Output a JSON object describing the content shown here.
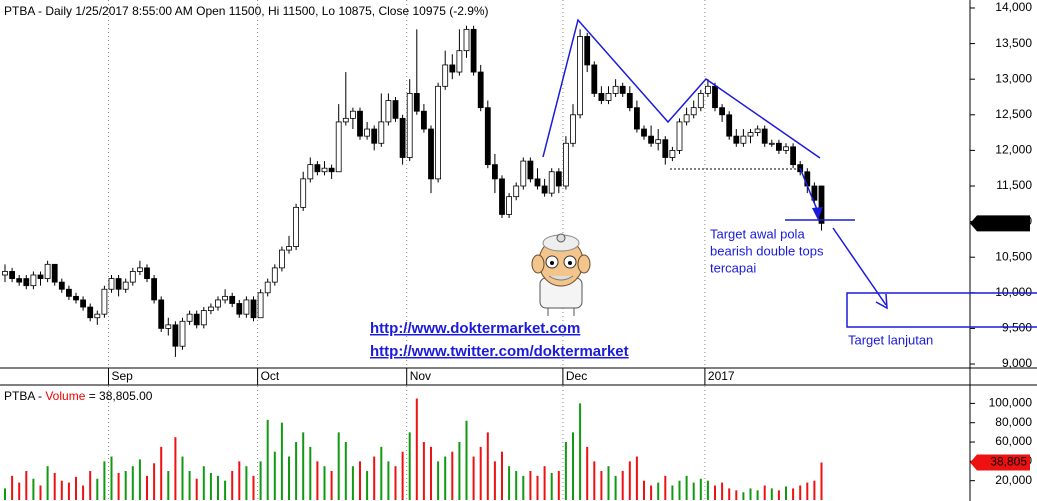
{
  "chart_data": {
    "type": "candlestick",
    "title": "PTBA - Daily 1/25/2017 8:55:00 AM Open 11500, Hi 11500, Lo 10875, Close 10975 (-2.9%)",
    "categories": [
      null,
      null,
      null,
      null,
      null,
      null,
      null,
      null,
      null,
      null,
      null,
      null,
      null,
      null,
      null,
      "Sep",
      null,
      null,
      null,
      null,
      null,
      null,
      null,
      null,
      null,
      null,
      null,
      null,
      null,
      null,
      null,
      null,
      null,
      null,
      null,
      null,
      "Oct",
      null,
      null,
      null,
      null,
      null,
      null,
      null,
      null,
      null,
      null,
      null,
      null,
      null,
      null,
      null,
      null,
      null,
      null,
      null,
      null,
      "Nov",
      null,
      null,
      null,
      null,
      null,
      null,
      null,
      null,
      null,
      null,
      null,
      null,
      null,
      null,
      null,
      null,
      null,
      null,
      null,
      null,
      null,
      "Dec",
      null,
      null,
      null,
      null,
      null,
      null,
      null,
      null,
      null,
      null,
      null,
      null,
      null,
      null,
      null,
      null,
      null,
      null,
      null,
      "2017",
      null,
      null,
      null,
      null,
      null,
      null,
      null,
      null,
      null,
      null,
      null,
      null,
      null,
      null,
      null,
      null
    ],
    "ohlc": [
      [
        10250,
        10400,
        10150,
        10300
      ],
      [
        10300,
        10350,
        10150,
        10200
      ],
      [
        10200,
        10250,
        10100,
        10150
      ],
      [
        10200,
        10250,
        10050,
        10100
      ],
      [
        10100,
        10300,
        10050,
        10250
      ],
      [
        10250,
        10300,
        10100,
        10200
      ],
      [
        10200,
        10450,
        10150,
        10400
      ],
      [
        10400,
        10400,
        10100,
        10150
      ],
      [
        10150,
        10200,
        10000,
        10050
      ],
      [
        10050,
        10100,
        9900,
        9950
      ],
      [
        9950,
        10000,
        9850,
        9900
      ],
      [
        9900,
        9950,
        9750,
        9800
      ],
      [
        9800,
        9850,
        9600,
        9650
      ],
      [
        9650,
        9750,
        9550,
        9700
      ],
      [
        9700,
        10100,
        9650,
        10050
      ],
      [
        10050,
        10250,
        10000,
        10200
      ],
      [
        10200,
        10250,
        9950,
        10050
      ],
      [
        10050,
        10200,
        10000,
        10150
      ],
      [
        10150,
        10350,
        10100,
        10300
      ],
      [
        10300,
        10450,
        10250,
        10350
      ],
      [
        10350,
        10400,
        10150,
        10200
      ],
      [
        10200,
        10250,
        9850,
        9900
      ],
      [
        9900,
        9950,
        9450,
        9500
      ],
      [
        9500,
        9650,
        9400,
        9550
      ],
      [
        9550,
        9600,
        9100,
        9250
      ],
      [
        9250,
        9650,
        9200,
        9600
      ],
      [
        9600,
        9750,
        9550,
        9700
      ],
      [
        9700,
        9750,
        9500,
        9550
      ],
      [
        9550,
        9800,
        9500,
        9750
      ],
      [
        9750,
        9850,
        9700,
        9800
      ],
      [
        9800,
        9950,
        9750,
        9900
      ],
      [
        9900,
        10050,
        9850,
        9950
      ],
      [
        9950,
        10000,
        9800,
        9850
      ],
      [
        9850,
        9900,
        9650,
        9700
      ],
      [
        9700,
        9950,
        9650,
        9900
      ],
      [
        9900,
        9950,
        9600,
        9650
      ],
      [
        9650,
        10050,
        9650,
        10000
      ],
      [
        10000,
        10200,
        9950,
        10150
      ],
      [
        10150,
        10400,
        10100,
        10350
      ],
      [
        10350,
        10650,
        10300,
        10600
      ],
      [
        10600,
        10800,
        10550,
        10650
      ],
      [
        10650,
        11250,
        10600,
        11200
      ],
      [
        11200,
        11700,
        11150,
        11600
      ],
      [
        11600,
        11900,
        11550,
        11800
      ],
      [
        11800,
        11850,
        11650,
        11700
      ],
      [
        11700,
        11850,
        11650,
        11750
      ],
      [
        11750,
        11800,
        11600,
        11700
      ],
      [
        11700,
        12650,
        11700,
        12400
      ],
      [
        12400,
        13100,
        12350,
        12450
      ],
      [
        12450,
        12600,
        12300,
        12550
      ],
      [
        12550,
        12600,
        12150,
        12200
      ],
      [
        12200,
        12400,
        12150,
        12300
      ],
      [
        12300,
        12350,
        12000,
        12100
      ],
      [
        12100,
        12800,
        12050,
        12400
      ],
      [
        12400,
        12800,
        12350,
        12700
      ],
      [
        12700,
        12750,
        12400,
        12450
      ],
      [
        12450,
        12500,
        11800,
        11900
      ],
      [
        11900,
        13000,
        11850,
        12800
      ],
      [
        12800,
        13700,
        12500,
        12550
      ],
      [
        12550,
        12650,
        12250,
        12300
      ],
      [
        12300,
        12350,
        11400,
        11600
      ],
      [
        11600,
        12950,
        11550,
        12900
      ],
      [
        12900,
        13400,
        12850,
        13200
      ],
      [
        13200,
        13350,
        13000,
        13100
      ],
      [
        13100,
        13700,
        13050,
        13400
      ],
      [
        13400,
        13750,
        13300,
        13700
      ],
      [
        13700,
        13750,
        13050,
        13100
      ],
      [
        13100,
        13200,
        12550,
        12600
      ],
      [
        12600,
        12700,
        11750,
        11800
      ],
      [
        11800,
        11950,
        11400,
        11600
      ],
      [
        11600,
        11650,
        11050,
        11100
      ],
      [
        11100,
        11400,
        11050,
        11350
      ],
      [
        11350,
        11550,
        11300,
        11500
      ],
      [
        11500,
        11900,
        11450,
        11850
      ],
      [
        11850,
        11900,
        11550,
        11600
      ],
      [
        11600,
        11750,
        11450,
        11500
      ],
      [
        11500,
        11600,
        11350,
        11400
      ],
      [
        11400,
        11750,
        11350,
        11700
      ],
      [
        11700,
        11750,
        11400,
        11500
      ],
      [
        11500,
        12200,
        11450,
        12100
      ],
      [
        12100,
        12650,
        12050,
        12500
      ],
      [
        12500,
        13700,
        12450,
        13600
      ],
      [
        13600,
        13650,
        13100,
        13200
      ],
      [
        13200,
        13250,
        12750,
        12800
      ],
      [
        12800,
        12900,
        12650,
        12700
      ],
      [
        12700,
        12900,
        12650,
        12800
      ],
      [
        12800,
        13000,
        12750,
        12900
      ],
      [
        12900,
        12950,
        12750,
        12800
      ],
      [
        12800,
        12900,
        12550,
        12600
      ],
      [
        12600,
        12700,
        12250,
        12300
      ],
      [
        12300,
        12350,
        12150,
        12200
      ],
      [
        12200,
        12350,
        12050,
        12100
      ],
      [
        12100,
        12300,
        12000,
        12150
      ],
      [
        12150,
        12200,
        11800,
        11900
      ],
      [
        11900,
        12050,
        11850,
        12000
      ],
      [
        12000,
        12450,
        11950,
        12400
      ],
      [
        12400,
        12600,
        12350,
        12500
      ],
      [
        12500,
        12700,
        12450,
        12600
      ],
      [
        12600,
        12850,
        12550,
        12800
      ],
      [
        12800,
        13000,
        12750,
        12900
      ],
      [
        12900,
        12950,
        12550,
        12600
      ],
      [
        12600,
        12650,
        12400,
        12500
      ],
      [
        12500,
        12550,
        12150,
        12200
      ],
      [
        12200,
        12300,
        12050,
        12100
      ],
      [
        12100,
        12300,
        12050,
        12200
      ],
      [
        12200,
        12300,
        12100,
        12250
      ],
      [
        12250,
        12350,
        12200,
        12300
      ],
      [
        12300,
        12350,
        12050,
        12100
      ],
      [
        12100,
        12150,
        12050,
        12100
      ],
      [
        12100,
        12150,
        11950,
        12000
      ],
      [
        12000,
        12100,
        11950,
        12050
      ],
      [
        12050,
        12100,
        11750,
        11800
      ],
      [
        11800,
        11850,
        11650,
        11700
      ],
      [
        11700,
        11750,
        11400,
        11500
      ],
      [
        11500,
        11550,
        11250,
        11300
      ],
      [
        11500,
        11500,
        10875,
        10975
      ]
    ],
    "up_color": "#ffffff",
    "down_color": "#000000",
    "ylim": [
      8944,
      14112
    ],
    "yticks": [
      {
        "value": 9000,
        "label": "9,000"
      },
      {
        "value": 9500,
        "label": "9,500"
      },
      {
        "value": 10000,
        "label": "10,000"
      },
      {
        "value": 10500,
        "label": "10,500"
      },
      {
        "value": 11000,
        "label": "11,000"
      },
      {
        "value": 11500,
        "label": "11,500"
      },
      {
        "value": 12000,
        "label": "12,000"
      },
      {
        "value": 12500,
        "label": "12,500"
      },
      {
        "value": 13000,
        "label": "13,000"
      },
      {
        "value": 13500,
        "label": "13,500"
      },
      {
        "value": 14000,
        "label": "14,000"
      }
    ],
    "price_marker": {
      "value": 10975,
      "label": "10,975"
    },
    "volume_title": {
      "prefix": "PTBA - ",
      "name": "Volume",
      "suffix": "= 38,805.00"
    },
    "volume": [
      12000,
      25000,
      18000,
      30000,
      22000,
      15000,
      35000,
      28000,
      20000,
      18000,
      24000,
      15000,
      30000,
      22000,
      40000,
      45000,
      28000,
      30000,
      35000,
      42000,
      25000,
      38000,
      55000,
      30000,
      65000,
      45000,
      30000,
      22000,
      35000,
      28000,
      25000,
      20000,
      30000,
      40000,
      35000,
      25000,
      40000,
      83000,
      50000,
      80000,
      45000,
      60000,
      70000,
      55000,
      40000,
      35000,
      30000,
      70000,
      60000,
      35000,
      40000,
      30000,
      45000,
      55000,
      40000,
      35000,
      50000,
      70000,
      105000,
      60000,
      55000,
      40000,
      45000,
      50000,
      60000,
      82000,
      45000,
      55000,
      70000,
      40000,
      50000,
      35000,
      30000,
      25000,
      30000,
      25000,
      35000,
      28000,
      30000,
      60000,
      70000,
      100000,
      55000,
      40000,
      30000,
      35000,
      25000,
      30000,
      40000,
      45000,
      20000,
      15000,
      18000,
      25000,
      15000,
      20000,
      25000,
      18000,
      22000,
      20000,
      15000,
      18000,
      12000,
      10000,
      8000,
      12000,
      10000,
      15000,
      12000,
      10000,
      14000,
      12000,
      15000,
      18000,
      20000,
      38805
    ],
    "volume_up_color": "#119911",
    "volume_down_color": "#ee1111",
    "volume_ylim": [
      0,
      118000
    ],
    "volume_yticks": [
      {
        "value": 20000,
        "label": "20,000"
      },
      {
        "value": 40000,
        "label": "40,000"
      },
      {
        "value": 60000,
        "label": "60,000"
      },
      {
        "value": 80000,
        "label": "80,000"
      },
      {
        "value": 100000,
        "label": "100,000"
      }
    ],
    "volume_marker": {
      "value": 38805,
      "label": "38,805"
    },
    "annotations": {
      "target_first": [
        "Target awal pola",
        "bearish double tops",
        "tercapai"
      ],
      "target_next": "Target lanjutan",
      "links": [
        "http://www.doktermarket.com",
        "http://www.twitter.com/doktermarket"
      ]
    }
  }
}
